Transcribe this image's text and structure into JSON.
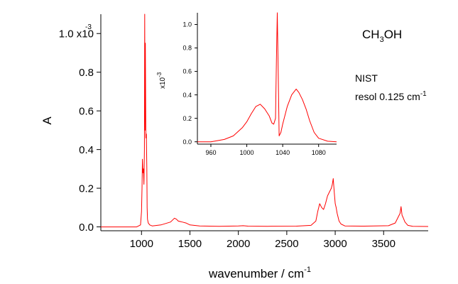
{
  "chart_data": [
    {
      "type": "line",
      "panel": "main",
      "x_unit": "cm^-1",
      "xlabel": "wavenumber / cm",
      "xlabel_superscript": "-1",
      "ylabel": "A",
      "xlim": [
        580,
        3960
      ],
      "ylim": [
        -0.02,
        1.1
      ],
      "x_ticks": [
        1000,
        1500,
        2000,
        2500,
        3000,
        3500
      ],
      "y_ticks": [
        0.0,
        0.2,
        0.4,
        0.6,
        0.8,
        1.0
      ],
      "y_tick_labels": [
        "0.0",
        "0.2",
        "0.4",
        "0.6",
        "0.8",
        "1.0 x10"
      ],
      "y_top_exponent": "-3",
      "series": [
        {
          "color": "#ff0000",
          "x": [
            580,
            800,
            950,
            990,
            1000,
            1005,
            1010,
            1015,
            1020,
            1025,
            1030,
            1033,
            1036,
            1040,
            1045,
            1050,
            1055,
            1058,
            1062,
            1070,
            1085,
            1110,
            1200,
            1300,
            1340,
            1360,
            1380,
            1420,
            1460,
            1500,
            1600,
            1800,
            2000,
            2050,
            2100,
            2300,
            2600,
            2750,
            2800,
            2820,
            2840,
            2860,
            2880,
            2900,
            2920,
            2940,
            2960,
            2970,
            2980,
            2990,
            3000,
            3010,
            3020,
            3040,
            3060,
            3100,
            3300,
            3550,
            3620,
            3650,
            3670,
            3680,
            3690,
            3700,
            3720,
            3750,
            3800,
            3960
          ],
          "y": [
            0.0,
            0.0,
            0.0,
            0.01,
            0.08,
            0.2,
            0.35,
            0.28,
            0.3,
            0.22,
            0.4,
            1.1,
            0.5,
            0.95,
            0.46,
            0.48,
            0.3,
            0.1,
            0.04,
            0.02,
            0.01,
            0.005,
            0.01,
            0.025,
            0.045,
            0.04,
            0.03,
            0.025,
            0.02,
            0.01,
            0.005,
            0.003,
            0.005,
            0.006,
            0.004,
            0.003,
            0.004,
            0.008,
            0.03,
            0.08,
            0.12,
            0.1,
            0.09,
            0.12,
            0.16,
            0.18,
            0.2,
            0.22,
            0.25,
            0.18,
            0.12,
            0.1,
            0.07,
            0.03,
            0.015,
            0.005,
            0.004,
            0.006,
            0.02,
            0.05,
            0.07,
            0.105,
            0.06,
            0.05,
            0.025,
            0.008,
            0.003,
            0.002
          ]
        }
      ]
    },
    {
      "type": "line",
      "panel": "inset",
      "y_exponent_label": "x10",
      "y_exponent": "-3",
      "xlim": [
        945,
        1100
      ],
      "ylim": [
        -0.02,
        1.1
      ],
      "x_ticks": [
        960,
        1000,
        1040,
        1080
      ],
      "y_ticks": [
        0.0,
        0.2,
        0.4,
        0.6,
        0.8,
        1.0
      ],
      "y_tick_labels": [
        "0.0",
        "0.2",
        "0.4",
        "0.6",
        "0.8",
        "1.0"
      ],
      "series": [
        {
          "color": "#ff0000",
          "x": [
            945,
            960,
            975,
            985,
            995,
            1000,
            1005,
            1010,
            1015,
            1020,
            1025,
            1028,
            1030,
            1032,
            1033,
            1034,
            1035,
            1036,
            1038,
            1040,
            1045,
            1050,
            1055,
            1058,
            1062,
            1066,
            1070,
            1075,
            1080,
            1090,
            1100
          ],
          "y": [
            0.0,
            0.0,
            0.02,
            0.05,
            0.12,
            0.17,
            0.24,
            0.3,
            0.32,
            0.28,
            0.22,
            0.16,
            0.15,
            0.2,
            0.7,
            1.1,
            0.6,
            0.05,
            0.08,
            0.15,
            0.3,
            0.4,
            0.45,
            0.42,
            0.36,
            0.28,
            0.18,
            0.08,
            0.03,
            0.005,
            0.0
          ]
        }
      ]
    }
  ],
  "annotations": {
    "molecule_main": "CH",
    "molecule_sub": "3",
    "molecule_rest": "OH",
    "source": "NIST",
    "resolution": "resol 0.125 cm",
    "resolution_superscript": "-1"
  }
}
